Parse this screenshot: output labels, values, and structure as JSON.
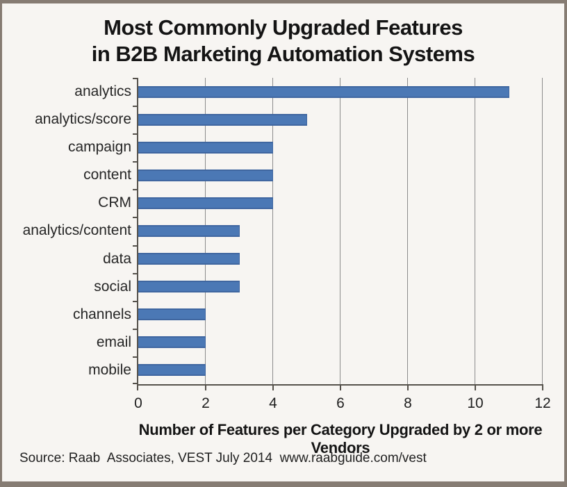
{
  "window": {
    "background": "#f7f5f2",
    "frame_border_color": "#867c73"
  },
  "title": {
    "line1": "Most Commonly Upgraded Features",
    "line2": "in B2B Marketing Automation Systems"
  },
  "footer": {
    "source": "Source: Raab  Associates, VEST July 2014  www.raabguide.com/vest"
  },
  "chart_data": {
    "type": "bar",
    "orientation": "horizontal",
    "title": "Most Commonly Upgraded Features in B2B Marketing Automation Systems",
    "categories": [
      "analytics",
      "analytics/score",
      "campaign",
      "content",
      "CRM",
      "analytics/content",
      "data",
      "social",
      "channels",
      "email",
      "mobile"
    ],
    "values": [
      11,
      5,
      4,
      4,
      4,
      3,
      3,
      3,
      2,
      2,
      2
    ],
    "xlabel": "Number of Features per Category Upgraded by 2 or more Vendors",
    "ylabel": "",
    "xlim": [
      0,
      12
    ],
    "xticks": [
      0,
      2,
      4,
      6,
      8,
      10,
      12
    ],
    "grid": true,
    "legend": "none",
    "bar_color": "#4b78b5",
    "bar_edge_color": "#3f66a0",
    "gridline_color": "#8b8b8b",
    "axis_color": "#55514b",
    "text_color": "#1f1f1f"
  }
}
